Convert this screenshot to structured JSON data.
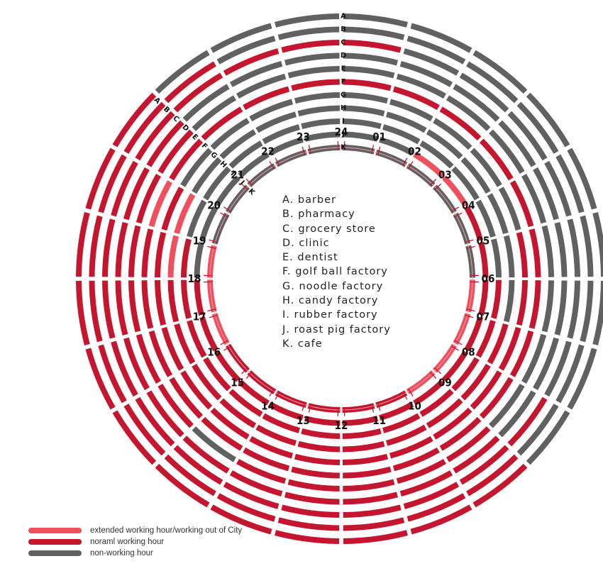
{
  "chart_data": {
    "type": "radial-timeline",
    "hours": [
      "24",
      "01",
      "02",
      "03",
      "04",
      "05",
      "06",
      "07",
      "08",
      "09",
      "10",
      "11",
      "12",
      "13",
      "14",
      "15",
      "16",
      "17",
      "18",
      "19",
      "20",
      "21",
      "22",
      "23"
    ],
    "rings": [
      {
        "letter": "A",
        "name": "A. barber",
        "status": "NNNNNNNNNWWWWWWWWWWWWNNN"
      },
      {
        "letter": "B",
        "name": "B. pharmacy",
        "status": "NNNNNNNNNWWWWWWWWWWWWWNN"
      },
      {
        "letter": "C",
        "name": "C. grocery store",
        "status": "WNNNNNNNWWWWWWWWWWWWWWWW"
      },
      {
        "letter": "D",
        "name": "D. clinic",
        "status": "NNNNNNNNNWWWWWWWWWWWWNNN"
      },
      {
        "letter": "E",
        "name": "E. dentist",
        "status": "NNNNNNNNNWWWWWNWWWWWWNNN"
      },
      {
        "letter": "F",
        "name": "F. golf ball factory",
        "status": "WWWWWWWWWWWWWWWWWWWXWWWW"
      },
      {
        "letter": "G",
        "name": "G. noodle factory",
        "status": "NNNNNWWWWWWWWWWWWWWWNNNN"
      },
      {
        "letter": "H",
        "name": "H. candy factory",
        "status": "NNNNNNNWWWWWWWWWWWXXNNNN"
      },
      {
        "letter": "I",
        "name": "I. rubber factory",
        "status": "NNNNNNWWWWWWWWWWWWWNNNNN"
      },
      {
        "letter": "J",
        "name": "J. roast pig factory",
        "status": "NNXXWWWWWWWWWWWWWWNNNNNN"
      },
      {
        "letter": "K",
        "name": "K. cafe",
        "status": "NNNNNNXXXXWWWWWWXXXNNNNN"
      }
    ],
    "status_codes": {
      "X": "extended",
      "W": "normal",
      "N": "off"
    },
    "colors": {
      "extended": "#f0505e",
      "normal": "#c4162e",
      "off": "#616161"
    },
    "legend": [
      {
        "key": "extended",
        "label": "extended working hour/working out of City"
      },
      {
        "key": "normal",
        "label": "noraml working hour"
      },
      {
        "key": "off",
        "label": "non-working hour"
      }
    ]
  }
}
